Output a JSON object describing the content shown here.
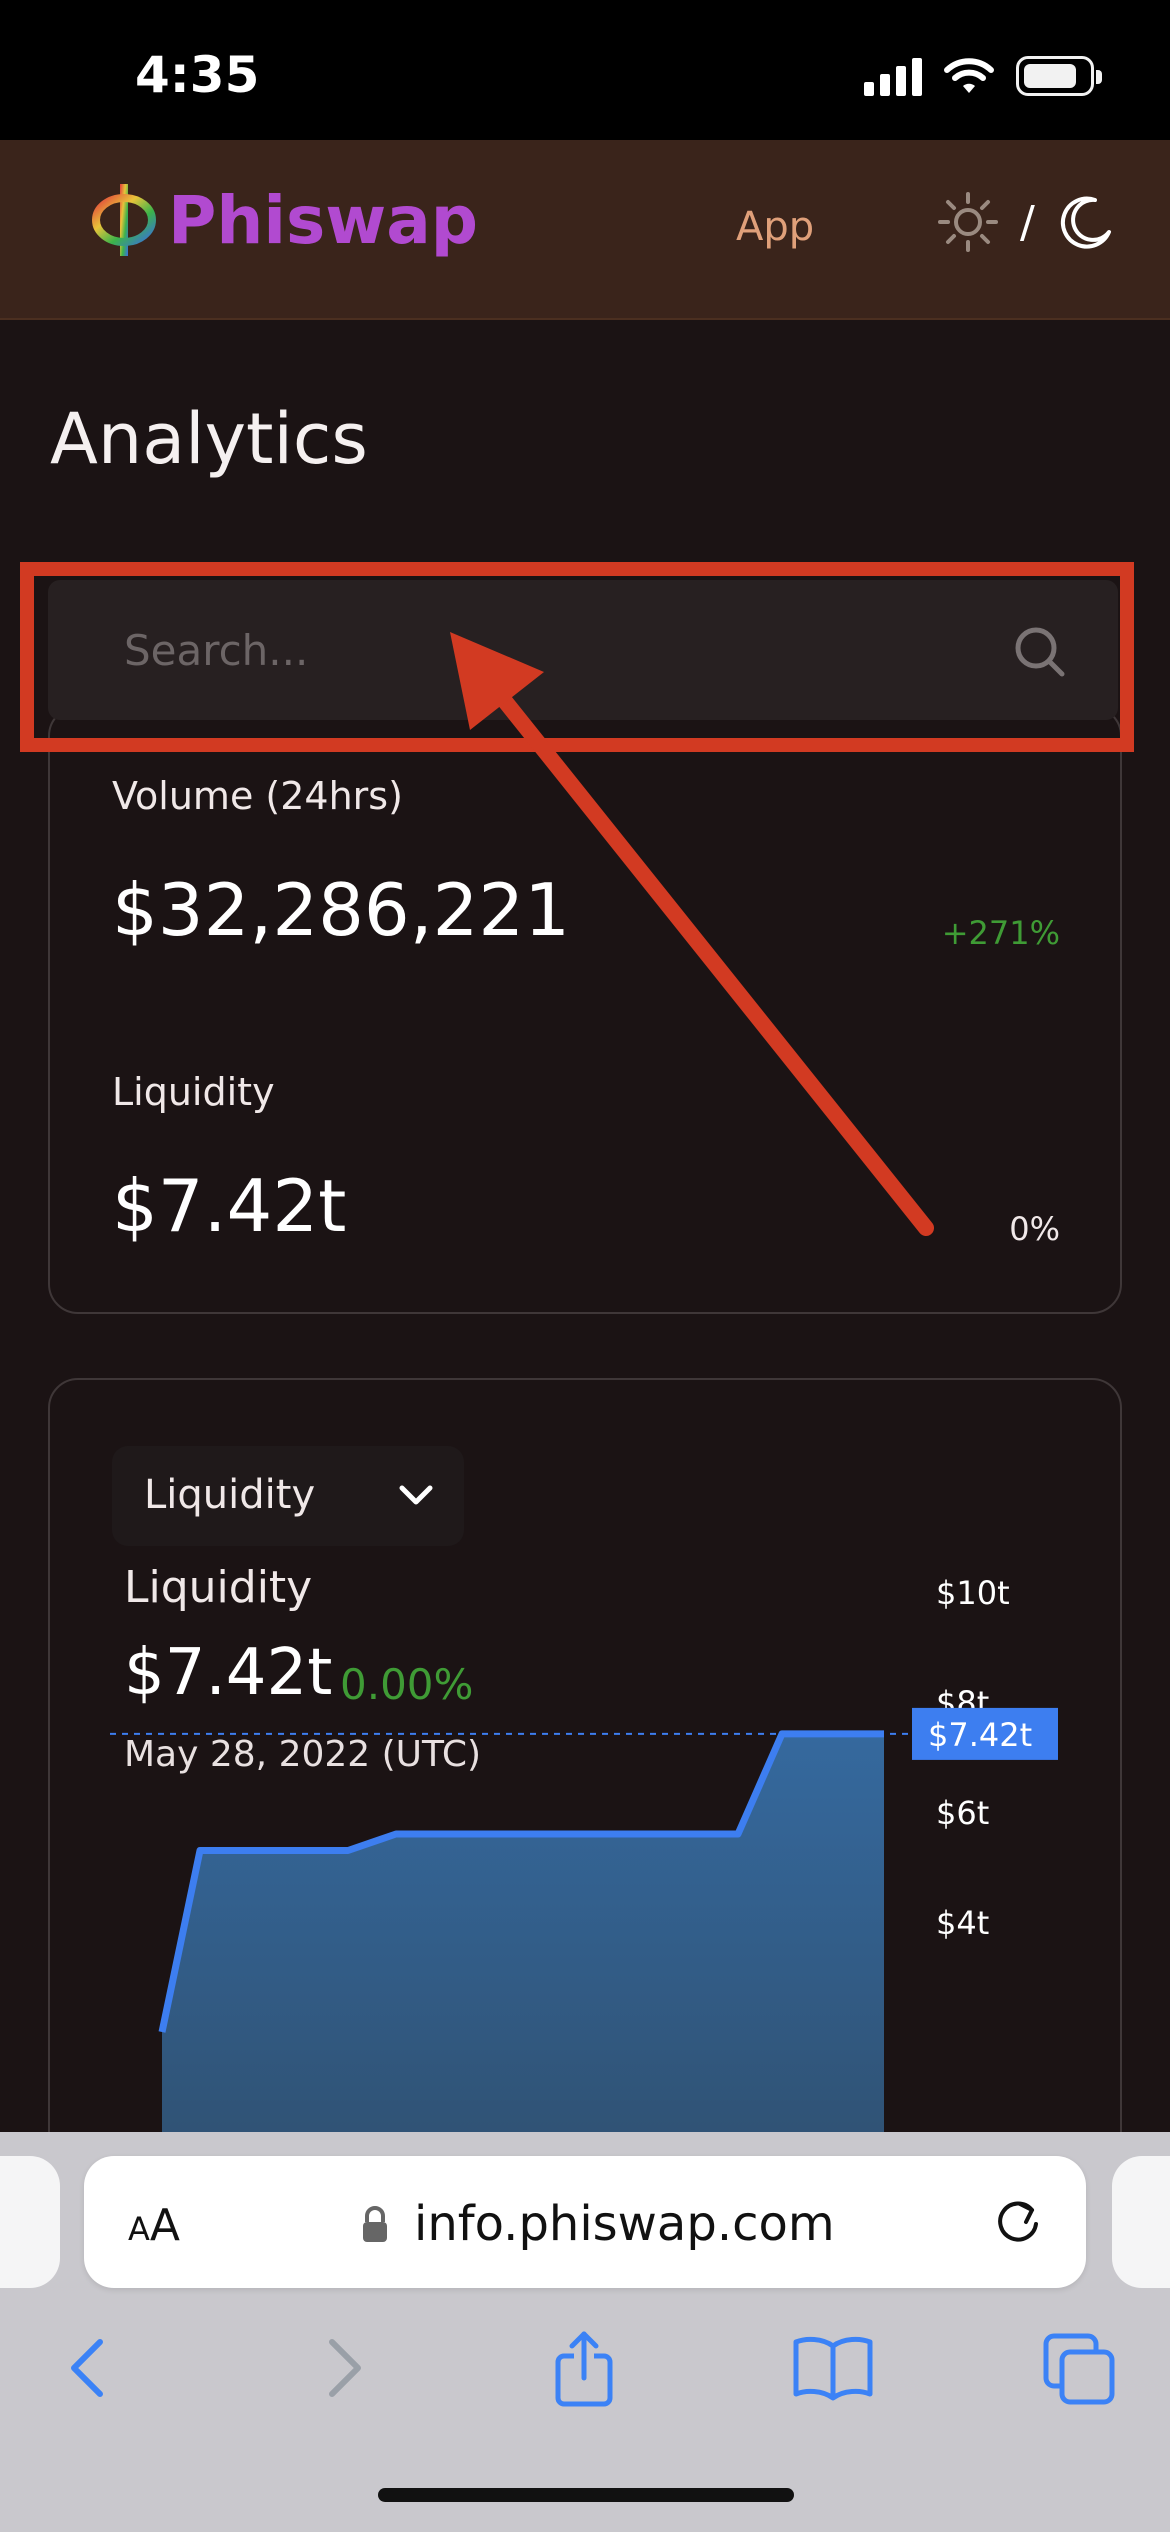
{
  "status_bar": {
    "time": "4:35"
  },
  "header": {
    "logo_text": "Phiswap",
    "nav_app": "App",
    "theme_separator": "/"
  },
  "page": {
    "title": "Analytics"
  },
  "search": {
    "placeholder": "Search..."
  },
  "overview": {
    "volume_label": "Volume (24hrs)",
    "volume_value": "$32,286,221",
    "volume_change": "+271%",
    "liquidity_label": "Liquidity",
    "liquidity_value": "$7.42t",
    "liquidity_change": "0%"
  },
  "chart_card": {
    "dropdown_selected": "Liquidity",
    "title": "Liquidity",
    "value": "$7.42t",
    "change": "0.00%",
    "date": "May 28, 2022 (UTC)",
    "current_marker": "$7.42t"
  },
  "chart_data": {
    "type": "area",
    "title": "Liquidity",
    "y_ticks": [
      "$10t",
      "$8t",
      "$6t",
      "$4t"
    ],
    "y_tick_values": [
      10,
      8,
      6,
      4
    ],
    "ylabel": "",
    "series": [
      {
        "values": [
          2.0,
          5.3,
          5.3,
          5.6,
          5.6,
          5.6,
          5.6,
          7.42,
          7.42
        ]
      }
    ],
    "current_value": 7.42,
    "current_label": "$7.42t"
  },
  "browser": {
    "text_size_label_small": "A",
    "text_size_label_large": "A",
    "url": "info.phiswap.com"
  },
  "colors": {
    "accent_logo": "#b14ad0",
    "positive": "#3f9b35",
    "chart_line": "#3d7ef0",
    "annotation": "#d23a22"
  }
}
